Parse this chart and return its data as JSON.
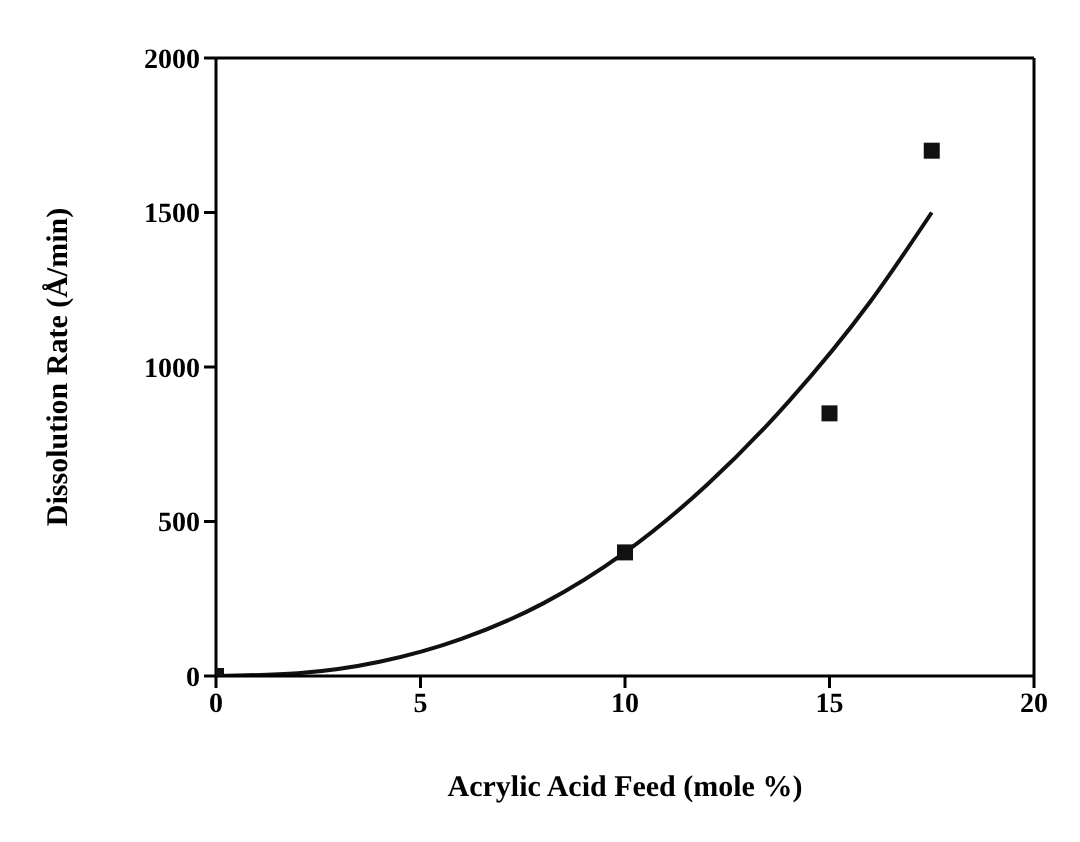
{
  "chart_data": {
    "type": "scatter",
    "xlabel": "Acrylic Acid Feed (mole %)",
    "ylabel": "Dissolution Rate (Å/min)",
    "xlim": [
      0,
      20
    ],
    "xticks": [
      0,
      5,
      10,
      15,
      20
    ],
    "ylim": [
      0,
      2000
    ],
    "yticks": [
      0,
      500,
      1000,
      1500,
      2000
    ],
    "legend": false,
    "series": [
      {
        "marker": "square",
        "color": "#111111",
        "x": [
          0,
          10,
          15,
          17.5
        ],
        "values": [
          0,
          400,
          850,
          1700
        ]
      },
      {
        "type": "line",
        "marker": "none",
        "line_style": "solid",
        "color": "#111111",
        "x": [
          0,
          2,
          4,
          6,
          8,
          10,
          12,
          14,
          16,
          17.5
        ],
        "values": [
          0,
          9,
          46,
          120,
          235,
          400,
          618,
          888,
          1212,
          1500
        ]
      }
    ]
  }
}
